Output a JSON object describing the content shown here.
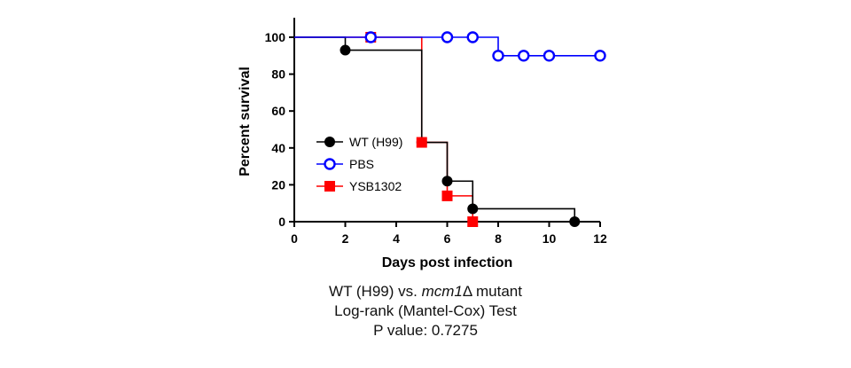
{
  "chart_data": {
    "type": "line",
    "subtype": "kaplan-meier survival",
    "xlabel": "Days post infection",
    "ylabel": "Percent survival",
    "xlim": [
      0,
      12
    ],
    "ylim": [
      0,
      100
    ],
    "xticks": [
      0,
      2,
      4,
      6,
      8,
      10,
      12
    ],
    "yticks": [
      0,
      20,
      40,
      60,
      80,
      100
    ],
    "grid": false,
    "legend_position": "left-center",
    "series": [
      {
        "name": "WT (H99)",
        "color": "#000000",
        "marker": "filled-circle",
        "steps": [
          [
            0,
            100
          ],
          [
            2,
            93
          ],
          [
            5,
            43
          ],
          [
            6,
            22
          ],
          [
            7,
            7
          ],
          [
            11,
            0
          ]
        ],
        "markers": [
          [
            2,
            93
          ],
          [
            5,
            43
          ],
          [
            6,
            22
          ],
          [
            7,
            7
          ],
          [
            11,
            0
          ]
        ]
      },
      {
        "name": "PBS",
        "color": "#0000ff",
        "marker": "open-circle",
        "steps": [
          [
            0,
            100
          ],
          [
            8,
            90
          ],
          [
            12,
            90
          ]
        ],
        "markers": [
          [
            3,
            100
          ],
          [
            6,
            100
          ],
          [
            7,
            100
          ],
          [
            8,
            90
          ],
          [
            9,
            90
          ],
          [
            10,
            90
          ],
          [
            12,
            90
          ]
        ]
      },
      {
        "name": "YSB1302",
        "color": "#ff0000",
        "marker": "filled-square",
        "steps": [
          [
            0,
            100
          ],
          [
            5,
            43
          ],
          [
            6,
            14
          ],
          [
            7,
            0
          ]
        ],
        "markers": [
          [
            3,
            100
          ],
          [
            5,
            43
          ],
          [
            6,
            14
          ],
          [
            7,
            0
          ]
        ]
      }
    ]
  },
  "caption": {
    "line1_prefix": "WT (H99) vs. ",
    "line1_mutant": "mcm1",
    "line1_suffix": "Δ mutant",
    "line2": "Log-rank (Mantel-Cox) Test",
    "line3": "P value: 0.7275"
  }
}
